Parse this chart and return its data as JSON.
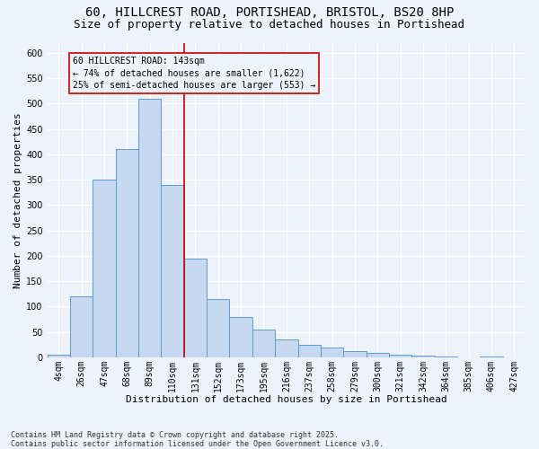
{
  "title1": "60, HILLCREST ROAD, PORTISHEAD, BRISTOL, BS20 8HP",
  "title2": "Size of property relative to detached houses in Portishead",
  "xlabel": "Distribution of detached houses by size in Portishead",
  "ylabel": "Number of detached properties",
  "footnote1": "Contains HM Land Registry data © Crown copyright and database right 2025.",
  "footnote2": "Contains public sector information licensed under the Open Government Licence v3.0.",
  "annotation_line1": "60 HILLCREST ROAD: 143sqm",
  "annotation_line2": "← 74% of detached houses are smaller (1,622)",
  "annotation_line3": "25% of semi-detached houses are larger (553) →",
  "bar_labels": [
    "4sqm",
    "26sqm",
    "47sqm",
    "68sqm",
    "89sqm",
    "110sqm",
    "131sqm",
    "152sqm",
    "173sqm",
    "195sqm",
    "216sqm",
    "237sqm",
    "258sqm",
    "279sqm",
    "300sqm",
    "321sqm",
    "342sqm",
    "364sqm",
    "385sqm",
    "406sqm",
    "427sqm"
  ],
  "bar_values": [
    5,
    120,
    350,
    410,
    510,
    340,
    195,
    115,
    80,
    55,
    35,
    25,
    20,
    12,
    8,
    5,
    3,
    2,
    0,
    2,
    0
  ],
  "bar_color": "#c6d9f0",
  "bar_edge_color": "#5b9bd5",
  "vline_position": 5.5,
  "vline_color": "#cc0000",
  "ylim_max": 620,
  "yticks": [
    0,
    50,
    100,
    150,
    200,
    250,
    300,
    350,
    400,
    450,
    500,
    550,
    600
  ],
  "bg_color": "#eef3fb",
  "grid_color": "#ffffff",
  "title_fontsize": 10,
  "subtitle_fontsize": 9,
  "axis_label_fontsize": 8,
  "tick_fontsize": 7,
  "annot_fontsize": 7,
  "footnote_fontsize": 6
}
